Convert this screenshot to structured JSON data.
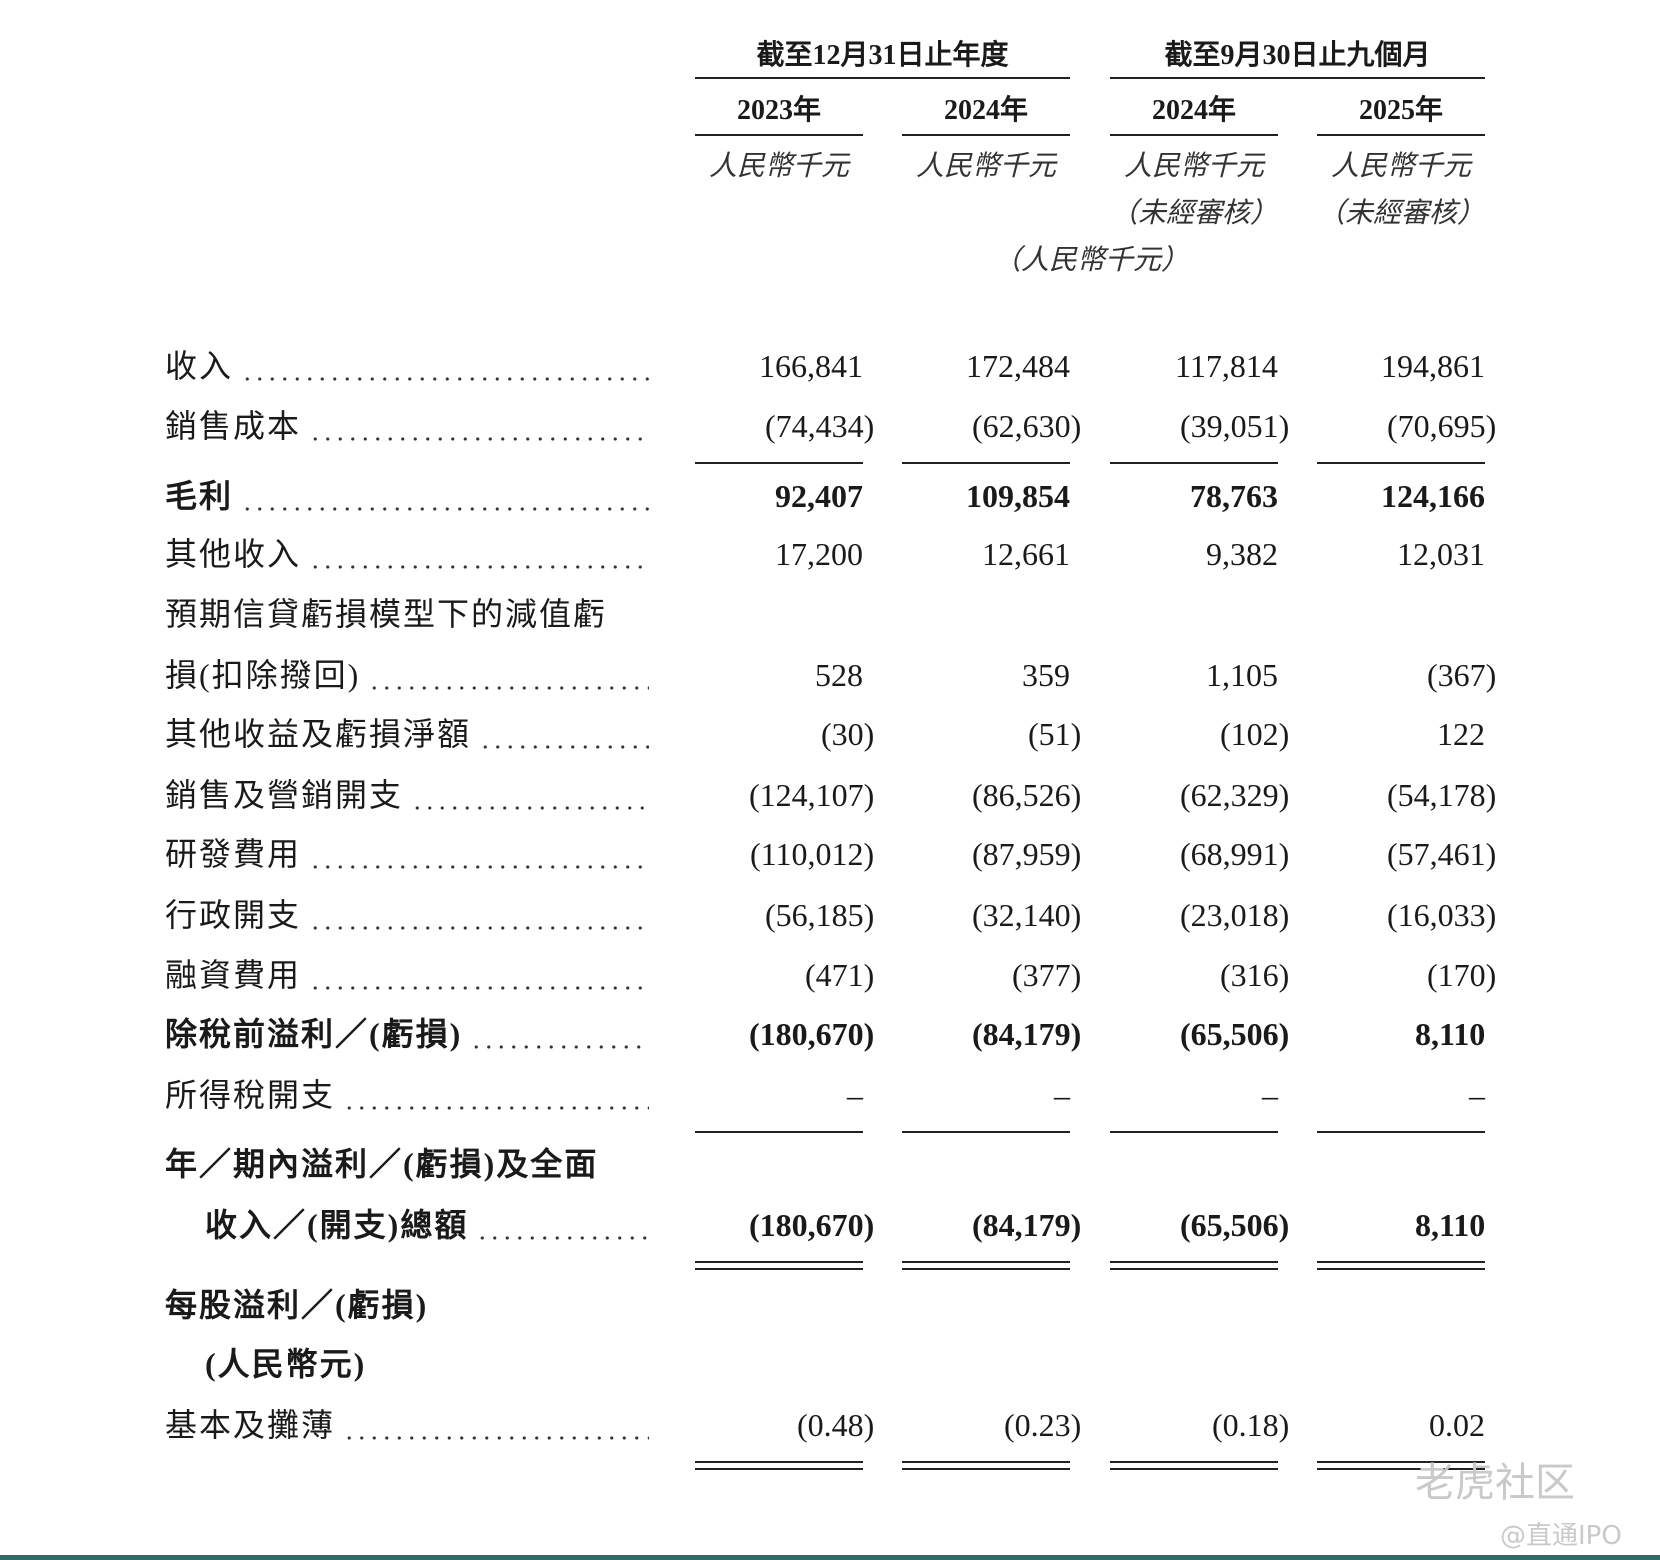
{
  "header": {
    "groups": [
      "截至12月31日止年度",
      "截至9月30日止九個月"
    ],
    "years": [
      "2023年",
      "2024年",
      "2024年",
      "2025年"
    ],
    "units": [
      "人民幣千元",
      "人民幣千元",
      "人民幣千元",
      "人民幣千元"
    ],
    "unaudited": [
      null,
      null,
      "（未經審核）",
      "（未經審核）"
    ],
    "note": "（人民幣千元）"
  },
  "table": {
    "rows": [
      {
        "label": [
          "收入"
        ],
        "values": [
          "166,841",
          "172,484",
          "117,814",
          "194,861"
        ]
      },
      {
        "label": [
          "銷售成本"
        ],
        "values": [
          "(74,434)",
          "(62,630)",
          "(39,051)",
          "(70,695)"
        ],
        "rule": "single"
      },
      {
        "label": [
          "毛利"
        ],
        "values": [
          "92,407",
          "109,854",
          "78,763",
          "124,166"
        ],
        "bold": true
      },
      {
        "label": [
          "其他收入"
        ],
        "values": [
          "17,200",
          "12,661",
          "9,382",
          "12,031"
        ]
      },
      {
        "label": [
          "預期信貸虧損模型下的減值虧",
          "損(扣除撥回)"
        ],
        "values": [
          "528",
          "359",
          "1,105",
          "(367)"
        ]
      },
      {
        "label": [
          "其他收益及虧損淨額"
        ],
        "values": [
          "(30)",
          "(51)",
          "(102)",
          "122"
        ]
      },
      {
        "label": [
          "銷售及營銷開支"
        ],
        "values": [
          "(124,107)",
          "(86,526)",
          "(62,329)",
          "(54,178)"
        ]
      },
      {
        "label": [
          "研發費用"
        ],
        "values": [
          "(110,012)",
          "(87,959)",
          "(68,991)",
          "(57,461)"
        ]
      },
      {
        "label": [
          "行政開支"
        ],
        "values": [
          "(56,185)",
          "(32,140)",
          "(23,018)",
          "(16,033)"
        ]
      },
      {
        "label": [
          "融資費用"
        ],
        "values": [
          "(471)",
          "(377)",
          "(316)",
          "(170)"
        ]
      },
      {
        "label": [
          "除稅前溢利／(虧損)"
        ],
        "values": [
          "(180,670)",
          "(84,179)",
          "(65,506)",
          "8,110"
        ],
        "bold": true
      },
      {
        "label": [
          "所得稅開支"
        ],
        "values": [
          "–",
          "–",
          "–",
          "–"
        ],
        "rule": "single"
      },
      {
        "label": [
          "年／期內溢利／(虧損)及全面",
          "收入／(開支)總額"
        ],
        "values": [
          "(180,670)",
          "(84,179)",
          "(65,506)",
          "8,110"
        ],
        "bold": true,
        "indent": true,
        "rule": "double"
      },
      {
        "label": [
          "每股溢利／(虧損)",
          "(人民幣元)"
        ],
        "bold": true,
        "indent": true
      },
      {
        "label": [
          "基本及攤薄"
        ],
        "values": [
          "(0.48)",
          "(0.23)",
          "(0.18)",
          "0.02"
        ],
        "rule": "double"
      }
    ]
  },
  "watermark": {
    "brand": "老虎社区",
    "source": "@直通IPO"
  }
}
